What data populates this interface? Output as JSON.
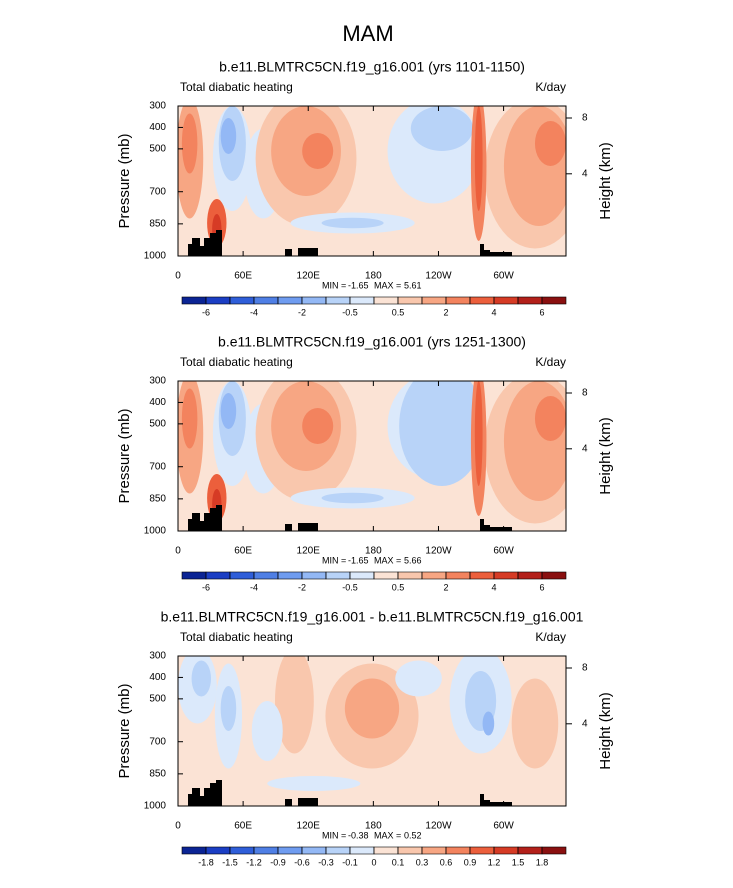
{
  "title": "MAM",
  "chart_data": [
    {
      "type": "contour",
      "title": "b.e11.BLMTRC5CN.f19_g16.001 (yrs 1101-1150)",
      "left_label": "Total diabatic heating",
      "right_label": "K/day",
      "ylabel": "Pressure (mb)",
      "y2label": "Height (km)",
      "xlim": [
        0,
        357.5
      ],
      "xticks": [
        0,
        {
          "value": 60,
          "label": "60E"
        },
        {
          "value": 120,
          "label": "120E"
        },
        180,
        {
          "value": 240,
          "label": "120W"
        },
        {
          "value": 300,
          "label": "60W"
        }
      ],
      "ylim": [
        1000,
        300
      ],
      "yticks": [
        300,
        400,
        500,
        700,
        850,
        1000
      ],
      "y2ticks": [
        4,
        8
      ],
      "min_label": "MIN =",
      "min": -1.65,
      "max_label": "MAX =",
      "max": 5.61,
      "colorbar": {
        "levels": [
          -6,
          -5,
          -4,
          -3,
          -2,
          -1,
          -0.5,
          0,
          0.5,
          1,
          2,
          3,
          4,
          5,
          6
        ],
        "label_every": 2,
        "colors": [
          "#0b2494",
          "#1b3ec4",
          "#2f5ed9",
          "#4f7fe5",
          "#6f9cf0",
          "#93b8f5",
          "#b8d3f8",
          "#dbe9fb",
          "#fbe3d5",
          "#f9c7ad",
          "#f7a683",
          "#f3835e",
          "#ec5f3c",
          "#d63b25",
          "#b3201a",
          "#8a1010"
        ]
      }
    },
    {
      "type": "contour",
      "title": "b.e11.BLMTRC5CN.f19_g16.001 (yrs 1251-1300)",
      "left_label": "Total diabatic heating",
      "right_label": "K/day",
      "ylabel": "Pressure (mb)",
      "y2label": "Height (km)",
      "xlim": [
        0,
        357.5
      ],
      "xticks": [
        0,
        {
          "value": 60,
          "label": "60E"
        },
        {
          "value": 120,
          "label": "120E"
        },
        180,
        {
          "value": 240,
          "label": "120W"
        },
        {
          "value": 300,
          "label": "60W"
        }
      ],
      "ylim": [
        1000,
        300
      ],
      "yticks": [
        300,
        400,
        500,
        700,
        850,
        1000
      ],
      "y2ticks": [
        4,
        8
      ],
      "min_label": "MIN =",
      "min": -1.65,
      "max_label": "MAX =",
      "max": 5.66,
      "colorbar": {
        "levels": [
          -6,
          -5,
          -4,
          -3,
          -2,
          -1,
          -0.5,
          0,
          0.5,
          1,
          2,
          3,
          4,
          5,
          6
        ],
        "label_every": 2,
        "colors": [
          "#0b2494",
          "#1b3ec4",
          "#2f5ed9",
          "#4f7fe5",
          "#6f9cf0",
          "#93b8f5",
          "#b8d3f8",
          "#dbe9fb",
          "#fbe3d5",
          "#f9c7ad",
          "#f7a683",
          "#f3835e",
          "#ec5f3c",
          "#d63b25",
          "#b3201a",
          "#8a1010"
        ]
      }
    },
    {
      "type": "contour",
      "title": "b.e11.BLMTRC5CN.f19_g16.001 - b.e11.BLMTRC5CN.f19_g16.001",
      "left_label": "Total diabatic heating",
      "right_label": "K/day",
      "ylabel": "Pressure (mb)",
      "y2label": "Height (km)",
      "xlim": [
        0,
        357.5
      ],
      "xticks": [
        0,
        {
          "value": 60,
          "label": "60E"
        },
        {
          "value": 120,
          "label": "120E"
        },
        180,
        {
          "value": 240,
          "label": "120W"
        },
        {
          "value": 300,
          "label": "60W"
        }
      ],
      "ylim": [
        1000,
        300
      ],
      "yticks": [
        300,
        400,
        500,
        700,
        850,
        1000
      ],
      "y2ticks": [
        4,
        8
      ],
      "min_label": "MIN =",
      "min": -0.38,
      "max_label": "MAX =",
      "max": 0.52,
      "colorbar": {
        "levels": [
          -1.8,
          -1.5,
          -1.2,
          -0.9,
          -0.6,
          -0.3,
          -0.1,
          0,
          0.1,
          0.3,
          0.6,
          0.9,
          1.2,
          1.5,
          1.8
        ],
        "label_every": 1,
        "colors": [
          "#0b2494",
          "#1b3ec4",
          "#2f5ed9",
          "#4f7fe5",
          "#6f9cf0",
          "#93b8f5",
          "#b8d3f8",
          "#dbe9fb",
          "#fbe3d5",
          "#f9c7ad",
          "#f7a683",
          "#f3835e",
          "#ec5f3c",
          "#d63b25",
          "#b3201a",
          "#8a1010"
        ]
      }
    }
  ]
}
